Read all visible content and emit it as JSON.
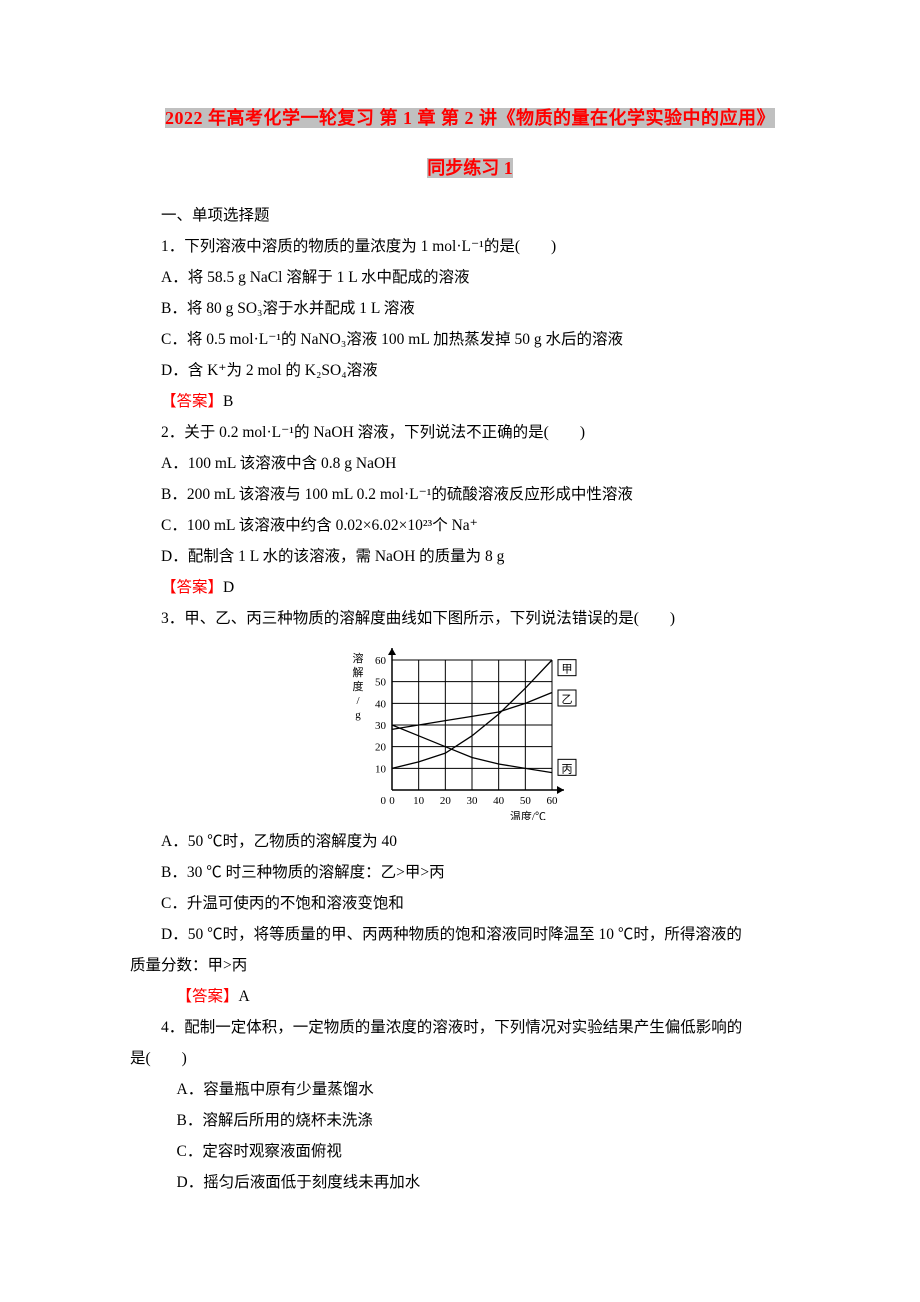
{
  "title": {
    "line1": "2022 年高考化学一轮复习 第 1 章 第 2 讲《物质的量在化学实验中的应用》",
    "line2": "同步练习 1"
  },
  "section_heading": "一、单项选择题",
  "q1": {
    "stem": "1．下列溶液中溶质的物质的量浓度为 1 mol·L⁻¹的是(　　)",
    "A": "A．将 58.5 g NaCl 溶解于 1 L 水中配成的溶液",
    "B": "B．将 80 g SO₃溶于水并配成 1 L 溶液",
    "C": "C．将 0.5 mol·L⁻¹的 NaNO₃溶液 100 mL 加热蒸发掉 50 g 水后的溶液",
    "D": "D．含 K⁺为 2 mol 的 K₂SO₄溶液",
    "answer_label": "【答案】",
    "answer": "B"
  },
  "q2": {
    "stem": "2．关于 0.2 mol·L⁻¹的 NaOH 溶液，下列说法不正确的是(　　)",
    "A": "A．100 mL 该溶液中含 0.8 g NaOH",
    "B": "B．200 mL 该溶液与 100 mL 0.2 mol·L⁻¹的硫酸溶液反应形成中性溶液",
    "C": "C．100 mL 该溶液中约含 0.02×6.02×10²³个 Na⁺",
    "D": "D．配制含 1 L 水的该溶液，需 NaOH 的质量为 8 g",
    "answer_label": "【答案】",
    "answer": "D"
  },
  "q3": {
    "stem": "3．甲、乙、丙三种物质的溶解度曲线如下图所示，下列说法错误的是(　　)",
    "A": "A．50 ℃时，乙物质的溶解度为 40",
    "B": "B．30 ℃ 时三种物质的溶解度：乙>甲>丙",
    "C": "C．升温可使丙的不饱和溶液变饱和",
    "D1": "D．50 ℃时，将等质量的甲、丙两种物质的饱和溶液同时降温至 10 ℃时，所得溶液的",
    "D2": "质量分数：甲>丙",
    "answer_label": "【答案】",
    "answer": "A"
  },
  "q4": {
    "stem1": "4．配制一定体积，一定物质的量浓度的溶液时，下列情况对实验结果产生偏低影响的",
    "stem2": "是(　　)",
    "A": "A．容量瓶中原有少量蒸馏水",
    "B": "B．溶解后所用的烧杯未洗涤",
    "C": "C．定容时观察液面俯视",
    "D": " D．摇匀后液面低于刻度线未再加水"
  },
  "chart": {
    "yaxis_label": "溶解度/g",
    "xaxis_label": "温度/℃",
    "x_ticks": [
      0,
      10,
      20,
      30,
      40,
      50,
      60
    ],
    "y_ticks": [
      10,
      20,
      30,
      40,
      50,
      60
    ],
    "series": {
      "jia": {
        "label": "甲",
        "points": [
          [
            0,
            10
          ],
          [
            10,
            13
          ],
          [
            20,
            17
          ],
          [
            30,
            25
          ],
          [
            40,
            35
          ],
          [
            50,
            47
          ],
          [
            60,
            60
          ]
        ]
      },
      "yi": {
        "label": "乙",
        "points": [
          [
            0,
            28
          ],
          [
            10,
            30
          ],
          [
            20,
            32
          ],
          [
            30,
            34
          ],
          [
            40,
            36
          ],
          [
            50,
            40
          ],
          [
            60,
            45
          ]
        ]
      },
      "bing": {
        "label": "丙",
        "points": [
          [
            0,
            30
          ],
          [
            10,
            25
          ],
          [
            20,
            20
          ],
          [
            30,
            15
          ],
          [
            40,
            12
          ],
          [
            50,
            10
          ],
          [
            60,
            8
          ]
        ]
      }
    },
    "grid_color": "#000000",
    "line_color": "#000000",
    "background": "#ffffff",
    "line_width": 1.3,
    "fontsize": 11
  }
}
